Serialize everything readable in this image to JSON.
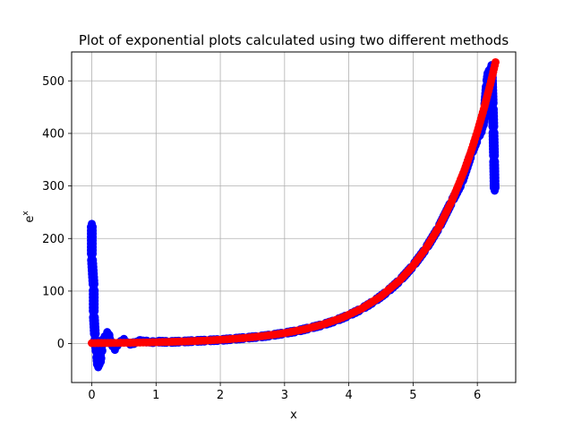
{
  "chart_data": {
    "type": "scatter",
    "title": "Plot of exponential plots calculated using two different methods",
    "xlabel": "x",
    "ylabel": "e",
    "ylabel_superscript": "x",
    "xlim": [
      -0.314,
      6.597
    ],
    "ylim": [
      -74,
      555
    ],
    "xticks": [
      0,
      1,
      2,
      3,
      4,
      5,
      6
    ],
    "xtick_labels": [
      "0",
      "1",
      "2",
      "3",
      "4",
      "5",
      "6"
    ],
    "yticks": [
      0,
      100,
      200,
      300,
      400,
      500
    ],
    "ytick_labels": [
      "0",
      "100",
      "200",
      "300",
      "400",
      "500"
    ],
    "grid": true,
    "colors": {
      "series_blue": "#0000ff",
      "series_red": "#ff0000",
      "grid": "#b0b0b0"
    },
    "series": [
      {
        "color": "blue",
        "points": [
          [
            0.0,
            228
          ],
          [
            0.0,
            165
          ],
          [
            0.03,
            107
          ],
          [
            0.03,
            56
          ],
          [
            0.05,
            13
          ],
          [
            0.06,
            0
          ],
          [
            0.08,
            -20
          ],
          [
            0.1,
            -45
          ],
          [
            0.12,
            -40
          ],
          [
            0.14,
            -22
          ],
          [
            0.16,
            -5
          ],
          [
            0.2,
            14
          ],
          [
            0.24,
            22
          ],
          [
            0.28,
            10
          ],
          [
            0.32,
            -5
          ],
          [
            0.36,
            -12
          ],
          [
            0.4,
            -4
          ],
          [
            0.45,
            5
          ],
          [
            0.5,
            9
          ],
          [
            0.55,
            3
          ],
          [
            0.6,
            -2
          ],
          [
            0.7,
            4
          ],
          [
            0.8,
            6
          ],
          [
            0.9,
            2
          ],
          [
            1.0,
            4
          ],
          [
            1.2,
            3
          ],
          [
            1.4,
            4
          ],
          [
            1.6,
            5
          ],
          [
            1.8,
            6
          ],
          [
            2.0,
            7
          ],
          [
            2.2,
            9
          ],
          [
            2.4,
            11
          ],
          [
            2.6,
            13
          ],
          [
            2.8,
            16
          ],
          [
            3.0,
            20
          ],
          [
            3.2,
            24
          ],
          [
            3.4,
            30
          ],
          [
            3.6,
            36
          ],
          [
            3.8,
            44
          ],
          [
            4.0,
            54
          ],
          [
            4.2,
            66
          ],
          [
            4.4,
            81
          ],
          [
            4.6,
            99
          ],
          [
            4.8,
            121
          ],
          [
            5.0,
            148
          ],
          [
            5.2,
            181
          ],
          [
            5.4,
            221
          ],
          [
            5.6,
            270
          ],
          [
            5.75,
            305
          ],
          [
            5.9,
            360
          ],
          [
            6.0,
            390
          ],
          [
            6.08,
            410
          ],
          [
            6.12,
            450
          ],
          [
            6.15,
            495
          ],
          [
            6.18,
            520
          ],
          [
            6.22,
            530
          ],
          [
            6.24,
            452
          ],
          [
            6.25,
            407
          ],
          [
            6.26,
            352
          ],
          [
            6.27,
            291
          ]
        ]
      },
      {
        "color": "red",
        "points": [
          [
            0.0,
            1
          ],
          [
            0.3,
            1.35
          ],
          [
            0.6,
            1.82
          ],
          [
            0.9,
            2.46
          ],
          [
            1.2,
            3.32
          ],
          [
            1.5,
            4.48
          ],
          [
            1.8,
            6.05
          ],
          [
            2.1,
            8.17
          ],
          [
            2.4,
            11.02
          ],
          [
            2.7,
            14.88
          ],
          [
            3.0,
            20.09
          ],
          [
            3.3,
            27.11
          ],
          [
            3.6,
            36.6
          ],
          [
            3.9,
            49.4
          ],
          [
            4.2,
            66.7
          ],
          [
            4.5,
            90.0
          ],
          [
            4.8,
            121.5
          ],
          [
            5.0,
            148.4
          ],
          [
            5.2,
            181.3
          ],
          [
            5.4,
            221.4
          ],
          [
            5.6,
            270.4
          ],
          [
            5.8,
            330.3
          ],
          [
            5.9,
            365.0
          ],
          [
            6.0,
            403.4
          ],
          [
            6.1,
            445.9
          ],
          [
            6.2,
            492.7
          ],
          [
            6.283,
            535.5
          ]
        ]
      }
    ]
  }
}
